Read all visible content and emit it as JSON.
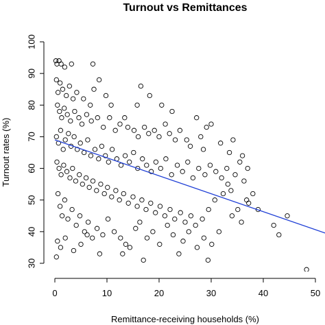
{
  "chart_data": {
    "type": "scatter",
    "title": "Turnout vs Remittances",
    "xlabel": "Remittance-receiving households (%)",
    "ylabel": "Turnout rates (%)",
    "xlim": [
      0,
      50
    ],
    "ylim": [
      30,
      100
    ],
    "x_ticks": [
      "0",
      "10",
      "20",
      "30",
      "40",
      "50"
    ],
    "y_ticks": [
      "30",
      "40",
      "50",
      "60",
      "70",
      "80",
      "90",
      "100"
    ],
    "grid": false,
    "legend": "none",
    "colors": {
      "points": "#000000",
      "fit_line": "#1f3fd6"
    },
    "fit_line": {
      "x": [
        0,
        52
      ],
      "y": [
        69,
        39.5
      ]
    },
    "series": [
      {
        "values": [
          [
            0.2,
            94
          ],
          [
            0.4,
            93
          ],
          [
            0.8,
            94
          ],
          [
            1.2,
            93
          ],
          [
            1.9,
            92
          ],
          [
            3.2,
            93
          ],
          [
            7.3,
            93
          ],
          [
            0.3,
            88
          ],
          [
            0.6,
            84
          ],
          [
            1.0,
            87
          ],
          [
            1.5,
            85
          ],
          [
            2.2,
            83
          ],
          [
            2.8,
            86
          ],
          [
            3.5,
            82
          ],
          [
            4.2,
            84
          ],
          [
            5.5,
            82
          ],
          [
            6.8,
            80
          ],
          [
            7.5,
            85
          ],
          [
            8.5,
            88
          ],
          [
            9.8,
            83
          ],
          [
            10.8,
            80
          ],
          [
            0.5,
            80
          ],
          [
            0.9,
            78
          ],
          [
            1.3,
            76
          ],
          [
            1.8,
            79
          ],
          [
            2.4,
            77
          ],
          [
            3.0,
            75
          ],
          [
            3.8,
            78
          ],
          [
            4.6,
            76
          ],
          [
            5.2,
            74
          ],
          [
            6.1,
            77
          ],
          [
            7.0,
            75
          ],
          [
            8.2,
            76
          ],
          [
            9.3,
            73
          ],
          [
            10.5,
            76
          ],
          [
            11.6,
            72
          ],
          [
            12.5,
            74
          ],
          [
            13.4,
            76
          ],
          [
            14.0,
            73
          ],
          [
            15.2,
            72
          ],
          [
            16.0,
            70
          ],
          [
            17.2,
            73
          ],
          [
            18.0,
            71
          ],
          [
            19.1,
            72
          ],
          [
            20.0,
            70
          ],
          [
            21.2,
            74
          ],
          [
            22.0,
            71
          ],
          [
            23.1,
            69
          ],
          [
            24.0,
            72
          ],
          [
            25.3,
            69
          ],
          [
            26.0,
            67
          ],
          [
            27.2,
            76
          ],
          [
            28.0,
            70
          ],
          [
            29.1,
            73
          ],
          [
            30.0,
            74
          ],
          [
            31.8,
            68
          ],
          [
            33.5,
            65
          ],
          [
            34.2,
            69
          ],
          [
            36.0,
            64
          ],
          [
            37.0,
            60
          ],
          [
            35.5,
            62
          ],
          [
            33.0,
            60
          ],
          [
            28.5,
            66
          ],
          [
            22.5,
            78
          ],
          [
            20.5,
            80
          ],
          [
            18.2,
            83
          ],
          [
            16.5,
            86
          ],
          [
            15.8,
            80
          ],
          [
            0.3,
            70
          ],
          [
            0.7,
            68
          ],
          [
            1.1,
            72
          ],
          [
            1.6,
            66
          ],
          [
            2.0,
            69
          ],
          [
            2.6,
            71
          ],
          [
            3.1,
            67
          ],
          [
            3.7,
            70
          ],
          [
            4.3,
            66
          ],
          [
            4.9,
            68
          ],
          [
            5.6,
            65
          ],
          [
            6.3,
            69
          ],
          [
            6.9,
            64
          ],
          [
            7.7,
            66
          ],
          [
            8.4,
            63
          ],
          [
            9.0,
            67
          ],
          [
            9.7,
            64
          ],
          [
            10.3,
            62
          ],
          [
            11.0,
            66
          ],
          [
            11.9,
            63
          ],
          [
            12.7,
            61
          ],
          [
            13.5,
            64
          ],
          [
            14.3,
            62
          ],
          [
            15.1,
            65
          ],
          [
            15.9,
            60
          ],
          [
            16.8,
            63
          ],
          [
            17.6,
            61
          ],
          [
            18.5,
            59
          ],
          [
            19.4,
            62
          ],
          [
            20.3,
            60
          ],
          [
            21.3,
            63
          ],
          [
            22.4,
            58
          ],
          [
            23.5,
            61
          ],
          [
            24.5,
            59
          ],
          [
            25.5,
            62
          ],
          [
            26.5,
            57
          ],
          [
            27.6,
            60
          ],
          [
            28.8,
            58
          ],
          [
            29.8,
            61
          ],
          [
            30.9,
            59
          ],
          [
            32.0,
            57
          ],
          [
            33.2,
            55
          ],
          [
            34.6,
            58
          ],
          [
            36.3,
            56
          ],
          [
            0.4,
            62
          ],
          [
            0.8,
            60
          ],
          [
            1.2,
            58
          ],
          [
            1.7,
            61
          ],
          [
            2.3,
            59
          ],
          [
            2.9,
            57
          ],
          [
            3.4,
            60
          ],
          [
            4.0,
            56
          ],
          [
            4.7,
            58
          ],
          [
            5.3,
            55
          ],
          [
            6.0,
            57
          ],
          [
            6.6,
            54
          ],
          [
            7.3,
            56
          ],
          [
            8.0,
            53
          ],
          [
            8.8,
            55
          ],
          [
            9.5,
            52
          ],
          [
            10.1,
            54
          ],
          [
            10.9,
            51
          ],
          [
            11.7,
            53
          ],
          [
            12.4,
            50
          ],
          [
            13.2,
            52
          ],
          [
            14.1,
            49
          ],
          [
            15.0,
            51
          ],
          [
            15.8,
            48
          ],
          [
            16.7,
            50
          ],
          [
            17.5,
            47
          ],
          [
            18.4,
            49
          ],
          [
            19.3,
            46
          ],
          [
            20.2,
            48
          ],
          [
            21.1,
            45
          ],
          [
            22.1,
            47
          ],
          [
            23.0,
            44
          ],
          [
            24.1,
            46
          ],
          [
            25.0,
            43
          ],
          [
            26.1,
            45
          ],
          [
            27.0,
            42
          ],
          [
            28.3,
            44
          ],
          [
            29.5,
            47
          ],
          [
            30.7,
            50
          ],
          [
            32.3,
            52
          ],
          [
            33.8,
            53
          ],
          [
            35.1,
            47
          ],
          [
            36.8,
            50
          ],
          [
            38.0,
            52
          ],
          [
            0.6,
            52
          ],
          [
            1.0,
            48
          ],
          [
            1.4,
            45
          ],
          [
            1.9,
            50
          ],
          [
            2.5,
            44
          ],
          [
            3.3,
            47
          ],
          [
            4.1,
            42
          ],
          [
            4.8,
            45
          ],
          [
            5.7,
            40
          ],
          [
            6.4,
            43
          ],
          [
            7.2,
            38
          ],
          [
            8.1,
            41
          ],
          [
            9.2,
            39
          ],
          [
            10.2,
            44
          ],
          [
            11.4,
            40
          ],
          [
            12.6,
            38
          ],
          [
            13.6,
            36
          ],
          [
            14.4,
            35
          ],
          [
            15.5,
            41
          ],
          [
            16.3,
            43
          ],
          [
            17.7,
            38
          ],
          [
            18.8,
            40
          ],
          [
            20.1,
            36
          ],
          [
            21.6,
            42
          ],
          [
            22.7,
            39
          ],
          [
            23.8,
            33
          ],
          [
            24.6,
            37
          ],
          [
            25.7,
            40
          ],
          [
            27.3,
            35
          ],
          [
            28.6,
            38
          ],
          [
            29.4,
            31
          ],
          [
            30.1,
            36
          ],
          [
            31.5,
            40
          ],
          [
            0.5,
            37
          ],
          [
            1.1,
            35
          ],
          [
            2.0,
            38
          ],
          [
            3.6,
            34
          ],
          [
            5.0,
            36
          ],
          [
            6.2,
            39
          ],
          [
            0.3,
            32
          ],
          [
            8.6,
            33
          ],
          [
            13.0,
            33
          ],
          [
            17.0,
            31
          ],
          [
            34.0,
            45
          ],
          [
            35.8,
            43
          ],
          [
            37.2,
            49
          ],
          [
            39.0,
            47
          ],
          [
            42.0,
            42
          ],
          [
            43.0,
            39
          ],
          [
            44.6,
            45
          ],
          [
            48.3,
            28
          ]
        ]
      }
    ]
  }
}
